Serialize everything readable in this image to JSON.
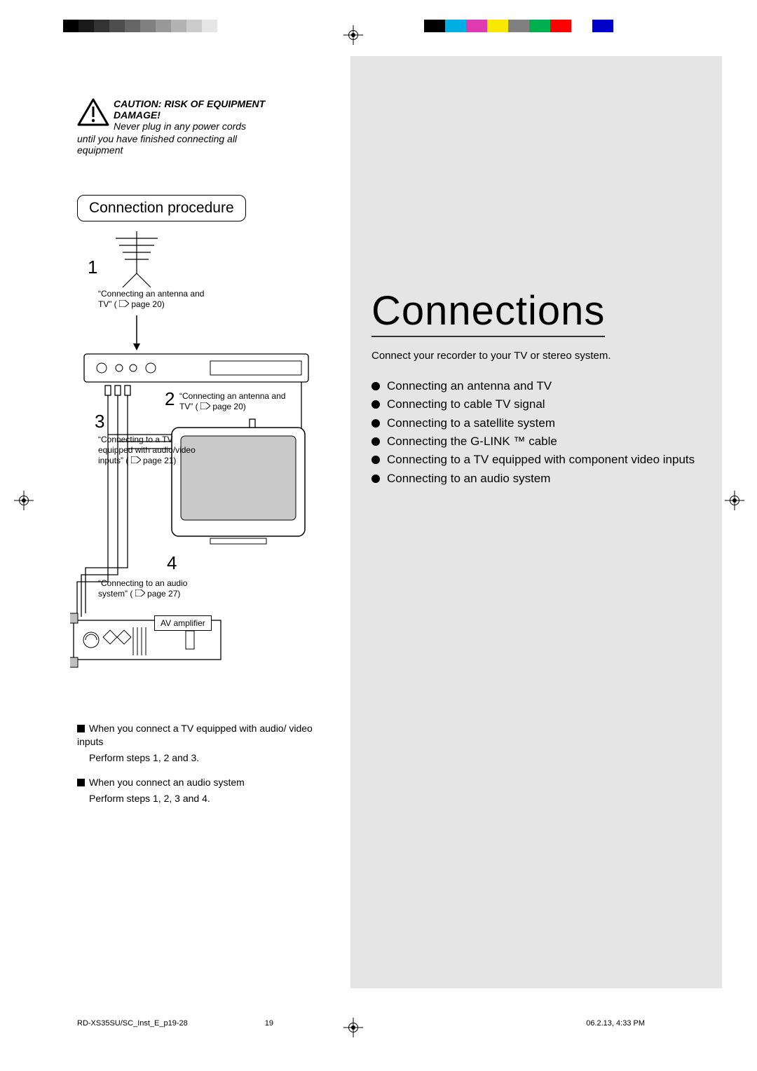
{
  "registration": {
    "gray_swatches": [
      "#000000",
      "#1a1a1a",
      "#333333",
      "#4d4d4d",
      "#666666",
      "#808080",
      "#999999",
      "#b3b3b3",
      "#cccccc",
      "#e6e6e6",
      "#ffffff"
    ],
    "color_swatches": [
      "#000000",
      "#00aee6",
      "#e03ab0",
      "#f7ea00",
      "#808080",
      "#00b050",
      "#ff0000",
      "#ffffff",
      "#0000c8",
      "#ffffff"
    ]
  },
  "caution": {
    "heading": "CAUTION: RISK OF EQUIPMENT DAMAGE!",
    "line1": "Never plug in any power cords",
    "line2": "until you have finished connecting all equipment"
  },
  "section_title": "Connection procedure",
  "diagram": {
    "step1": {
      "num": "1",
      "caption": "“Connecting an antenna and TV” (",
      "page": "page 20)"
    },
    "step2": {
      "num": "2",
      "caption": "“Connecting an antenna and TV” (",
      "page": "page 20)"
    },
    "step3": {
      "num": "3",
      "caption": "“Connecting to a TV equipped with audio/video inputs” (",
      "page": "page 21)"
    },
    "step4": {
      "num": "4",
      "caption": "“Connecting to an audio system” (",
      "page": "page 27)"
    },
    "av_label": "AV amplifier"
  },
  "right": {
    "title": "Connections",
    "subtitle": "Connect your recorder to your TV or stereo system.",
    "items": [
      "Connecting an antenna and TV",
      "Connecting to cable TV signal",
      "Connecting to a satellite system",
      "Connecting the G-LINK ™ cable",
      "Connecting to a TV equipped with component video inputs",
      "Connecting to an audio system"
    ]
  },
  "notes": {
    "n1_head": "When you connect a TV equipped with audio/ video inputs",
    "n1_body": "Perform steps 1, 2 and 3.",
    "n2_head": "When you connect an audio system",
    "n2_body": "Perform steps 1, 2, 3 and 4."
  },
  "footer": {
    "doc": "RD-XS35SU/SC_Inst_E_p19-28",
    "page": "19",
    "timestamp": "06.2.13, 4:33 PM"
  },
  "colors": {
    "right_bg": "#e5e5e5",
    "text": "#000000"
  }
}
